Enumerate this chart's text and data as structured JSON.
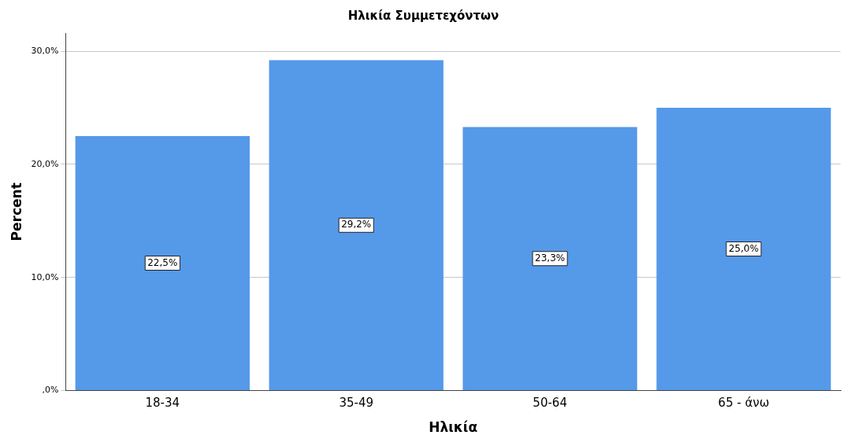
{
  "chart_data": {
    "type": "bar",
    "title": "Ηλικία Συμμετεχόντων",
    "xlabel": "Ηλικία",
    "ylabel": "Percent",
    "categories": [
      "18-34",
      "35-49",
      "50-64",
      "65 - άνω"
    ],
    "values": [
      22.5,
      29.2,
      23.3,
      25.0
    ],
    "value_labels": [
      "22,5%",
      "29,2%",
      "23,3%",
      "25,0%"
    ],
    "color": "#5599e9",
    "ylim": [
      0,
      31.6
    ],
    "yticks": [
      {
        "value": 0,
        "label": ",0%"
      },
      {
        "value": 10,
        "label": "10,0%"
      },
      {
        "value": 20,
        "label": "20,0%"
      },
      {
        "value": 30,
        "label": "30,0%"
      }
    ],
    "grid": "y",
    "legend": false
  }
}
